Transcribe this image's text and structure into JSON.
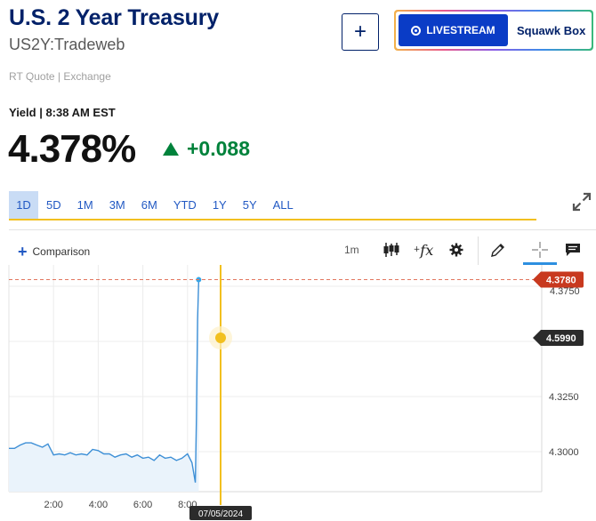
{
  "header": {
    "title": "U.S. 2 Year Treasury",
    "symbol": "US2Y:Tradeweb",
    "quote_source": "RT Quote | Exchange",
    "add_button": "+",
    "livestream_label": "LIVESTREAM",
    "squawk_label": "Squawk Box"
  },
  "quote": {
    "yield_label": "Yield | 8:38 AM EST",
    "price": "4.378%",
    "change": "+0.088",
    "change_color": "#00823b",
    "direction": "up"
  },
  "ranges": [
    "1D",
    "5D",
    "1M",
    "3M",
    "6M",
    "YTD",
    "1Y",
    "5Y",
    "ALL"
  ],
  "active_range": "1D",
  "toolbar": {
    "comparison_label": "Comparison",
    "interval": "1m",
    "icons": [
      "candlestick-icon",
      "function-icon",
      "settings-icon",
      "pencil-icon",
      "crosshair-icon",
      "comment-icon"
    ]
  },
  "chart_data": {
    "type": "line",
    "x_ticks": [
      "2:00",
      "4:00",
      "6:00",
      "8:00"
    ],
    "y_ticks": [
      "4.3250",
      "4.3000"
    ],
    "y_tick_partial": "4.3750",
    "last_price_label": "4.3780",
    "crosshair_value_label": "4.5990",
    "crosshair_date_label": "07/05/2024",
    "line_color": "#3d8fd6",
    "last_price_color": "#c8391f",
    "crosshair_color": "#f2c01f",
    "x_hours": [
      0.0,
      0.25,
      0.5,
      0.75,
      1.0,
      1.25,
      1.5,
      1.75,
      2.0,
      2.25,
      2.5,
      2.75,
      3.0,
      3.25,
      3.5,
      3.75,
      4.0,
      4.25,
      4.5,
      4.75,
      5.0,
      5.25,
      5.5,
      5.75,
      6.0,
      6.25,
      6.5,
      6.75,
      7.0,
      7.25,
      7.5,
      7.75,
      8.0,
      8.2,
      8.35,
      8.4,
      8.45,
      8.5
    ],
    "values": [
      4.3015,
      4.3015,
      4.303,
      4.304,
      4.304,
      4.303,
      4.302,
      4.3035,
      4.2985,
      4.299,
      4.2985,
      4.2995,
      4.2985,
      4.299,
      4.2985,
      4.301,
      4.3005,
      4.299,
      4.299,
      4.2975,
      4.2985,
      4.299,
      4.2975,
      4.2985,
      4.297,
      4.2975,
      4.296,
      4.2985,
      4.297,
      4.2975,
      4.296,
      4.297,
      4.299,
      4.295,
      4.286,
      4.315,
      4.36,
      4.378
    ]
  }
}
